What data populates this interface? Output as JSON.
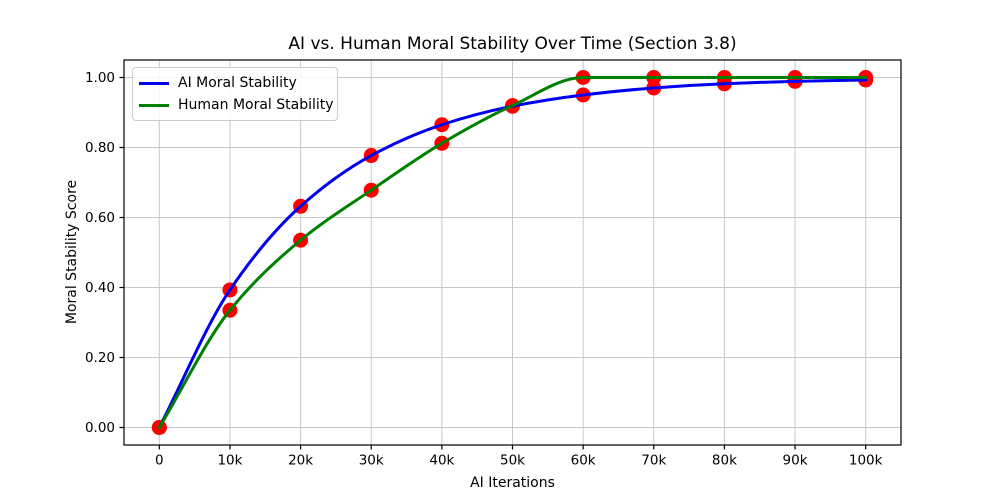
{
  "chart_data": {
    "type": "line",
    "title": "AI vs. Human Moral Stability Over Time (Section 3.8)",
    "xlabel": "AI Iterations",
    "ylabel": "Moral Stability Score",
    "x": [
      0,
      10000,
      20000,
      30000,
      40000,
      50000,
      60000,
      70000,
      80000,
      90000,
      100000
    ],
    "x_tick_labels": [
      "0",
      "10k",
      "20k",
      "30k",
      "40k",
      "50k",
      "60k",
      "70k",
      "80k",
      "90k",
      "100k"
    ],
    "y_ticks": [
      0.0,
      0.2,
      0.4,
      0.6,
      0.8,
      1.0
    ],
    "y_tick_labels": [
      "0.00",
      "0.20",
      "0.40",
      "0.60",
      "0.80",
      "1.00"
    ],
    "xlim": [
      -5000,
      105000
    ],
    "ylim": [
      -0.05,
      1.05
    ],
    "grid": true,
    "grid_color": "#c8c8c8",
    "legend_position": "upper-left",
    "series": [
      {
        "name": "AI Moral Stability",
        "color": "#0000ee",
        "values": [
          0.0,
          0.393,
          0.632,
          0.777,
          0.865,
          0.918,
          0.95,
          0.97,
          0.982,
          0.989,
          0.993
        ]
      },
      {
        "name": "Human Moral Stability",
        "color": "#008000",
        "values": [
          0.0,
          0.335,
          0.535,
          0.678,
          0.812,
          0.92,
          1.0,
          1.0,
          1.0,
          1.0,
          1.0
        ]
      }
    ],
    "markers": {
      "color": "#ff0000",
      "shape": "circle",
      "on_every_point": true
    }
  }
}
